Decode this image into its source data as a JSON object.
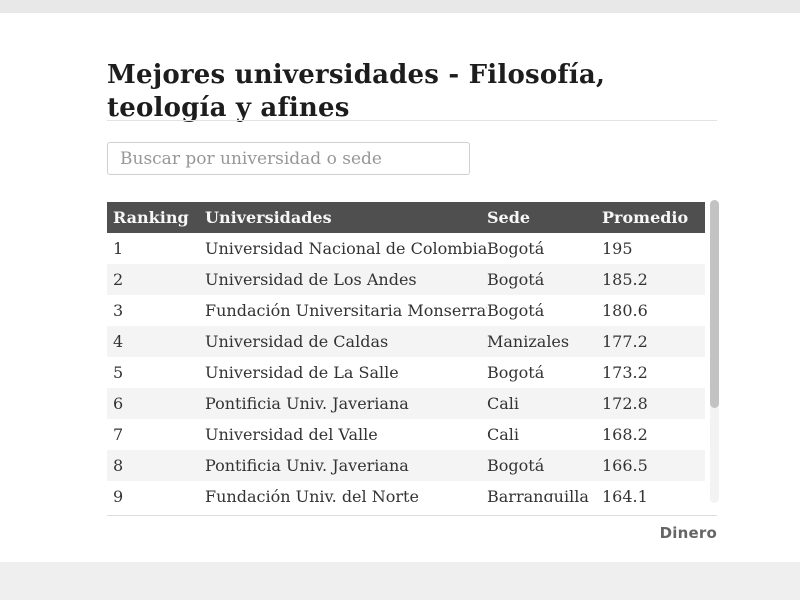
{
  "header": {
    "title": "Mejores universidades - Filosofía, teología y afines"
  },
  "search": {
    "placeholder": "Buscar por universidad o sede"
  },
  "table": {
    "columns": [
      "Ranking",
      "Universidades",
      "Sede",
      "Promedio"
    ],
    "rows": [
      {
        "ranking": "1",
        "universidad": "Universidad Nacional de Colombia",
        "sede": "Bogotá",
        "promedio": "195"
      },
      {
        "ranking": "2",
        "universidad": "Universidad de Los Andes",
        "sede": "Bogotá",
        "promedio": "185.2"
      },
      {
        "ranking": "3",
        "universidad": "Fundación Universitaria Monserrate",
        "sede": "Bogotá",
        "promedio": "180.6"
      },
      {
        "ranking": "4",
        "universidad": "Universidad de Caldas",
        "sede": "Manizales",
        "promedio": "177.2"
      },
      {
        "ranking": "5",
        "universidad": "Universidad de La Salle",
        "sede": "Bogotá",
        "promedio": "173.2"
      },
      {
        "ranking": "6",
        "universidad": "Pontificia Univ. Javeriana",
        "sede": "Cali",
        "promedio": "172.8"
      },
      {
        "ranking": "7",
        "universidad": "Universidad del Valle",
        "sede": "Cali",
        "promedio": "168.2"
      },
      {
        "ranking": "8",
        "universidad": "Pontificia Univ. Javeriana",
        "sede": "Bogotá",
        "promedio": "166.5"
      },
      {
        "ranking": "9",
        "universidad": "Fundación Univ. del Norte",
        "sede": "Barranquilla",
        "promedio": "164.1"
      }
    ]
  },
  "footer": {
    "brand": "Dinero"
  },
  "colors": {
    "header_bg": "#4f4f4f",
    "header_fg": "#f7f7f7",
    "row_alt": "#f4f4f4",
    "cell_fg": "#333333",
    "title_fg": "#1d1d1d",
    "divider": "#e3e3e3",
    "brand_fg": "#656565",
    "thumb": "#c3c3c3",
    "track": "#f3f3f3",
    "band": "#e8e8e8"
  }
}
